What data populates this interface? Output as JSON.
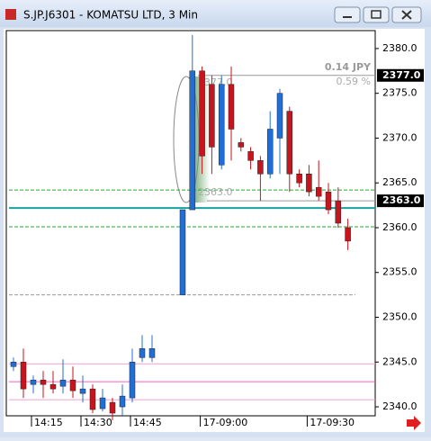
{
  "chart_data": {
    "type": "candlestick",
    "title": "S.JP.J6301 - KOMATSU LTD, 3 Min",
    "categories": [
      null,
      null,
      "14:15",
      null,
      null,
      null,
      null,
      "14:30",
      null,
      null,
      null,
      null,
      "14:45",
      null,
      null,
      null,
      null,
      "17-09:00",
      null,
      null,
      null,
      null,
      null,
      null,
      null,
      null,
      null,
      null,
      "17-09:30",
      null,
      null,
      null,
      null
    ],
    "open": [
      2344.5,
      2345,
      2342.5,
      2343,
      2342.5,
      2342.3,
      2343,
      2341.5,
      2342,
      2339.8,
      2340.5,
      2340,
      2341,
      2345.5,
      2345.5,
      2352.5,
      2362,
      2377.5,
      2376,
      2367,
      2376,
      2369.5,
      2368.5,
      2367.5,
      2366,
      2370,
      2373,
      2366,
      2366,
      2364.5,
      2364,
      2363,
      2360
    ],
    "high": [
      2345.5,
      2346.5,
      2343.5,
      2344,
      2344,
      2345.3,
      2344.5,
      2343.5,
      2342.5,
      2342,
      2341,
      2342.5,
      2346.5,
      2348,
      2348,
      2362,
      2381.5,
      2378,
      2377,
      2377,
      2378,
      2370,
      2369,
      2368,
      2373,
      2375.5,
      2373.5,
      2366.5,
      2367,
      2367.5,
      2365,
      2364.5,
      2361
    ],
    "low": [
      2344,
      2341,
      2341.5,
      2341,
      2341.5,
      2341.5,
      2341,
      2340.5,
      2339.3,
      2339.5,
      2338.5,
      2339,
      2340.5,
      2345,
      2345,
      2352.5,
      2362,
      2366,
      2366,
      2366.5,
      2367.5,
      2368.5,
      2366.5,
      2363,
      2365.5,
      2366,
      2364,
      2364.5,
      2363.5,
      2363,
      2361.5,
      2360,
      2357.5
    ],
    "close": [
      2345,
      2342,
      2343,
      2342.5,
      2342,
      2343,
      2341.8,
      2342,
      2339.7,
      2341,
      2339.3,
      2341.2,
      2345,
      2346.5,
      2346.5,
      2362,
      2377.5,
      2368,
      2369,
      2376,
      2371,
      2369,
      2367.5,
      2366,
      2371,
      2375,
      2366,
      2365,
      2364,
      2363.5,
      2362,
      2360.5,
      2358.5
    ],
    "up_color": "#1f6fd6",
    "down_color": "#c8141c",
    "ylim": [
      2339,
      2382
    ],
    "yticks": [
      {
        "value": 2340,
        "label": "2340.0"
      },
      {
        "value": 2345,
        "label": "2345.0"
      },
      {
        "value": 2350,
        "label": "2350.0"
      },
      {
        "value": 2355,
        "label": "2355.0"
      },
      {
        "value": 2360,
        "label": "2360.0"
      },
      {
        "value": 2365,
        "label": "2365.0"
      },
      {
        "value": 2370,
        "label": "2370.0"
      },
      {
        "value": 2375,
        "label": "2375.0"
      },
      {
        "value": 2380,
        "label": "2380.0"
      }
    ],
    "levels": [
      {
        "value": 2364.2,
        "color": "#22aa33",
        "dash": true
      },
      {
        "value": 2360.1,
        "color": "#22aa33",
        "dash": true
      },
      {
        "value": 2362.2,
        "color": "#1aa0a0",
        "dash": false
      },
      {
        "value": 2352.5,
        "color": "#999999",
        "dash": true
      },
      {
        "value": 2344.8,
        "color": "#f0a0d0",
        "dash": false
      },
      {
        "value": 2342.8,
        "color": "#f060c0",
        "dash": false
      },
      {
        "value": 2340.8,
        "color": "#f0a0d0",
        "dash": false
      }
    ],
    "price_labels": [
      {
        "value": 2377,
        "label": "2377.0"
      },
      {
        "value": 2363,
        "label": "2363.0"
      }
    ],
    "annotations": [
      "0.14 JPY",
      "0.59 %"
    ]
  }
}
